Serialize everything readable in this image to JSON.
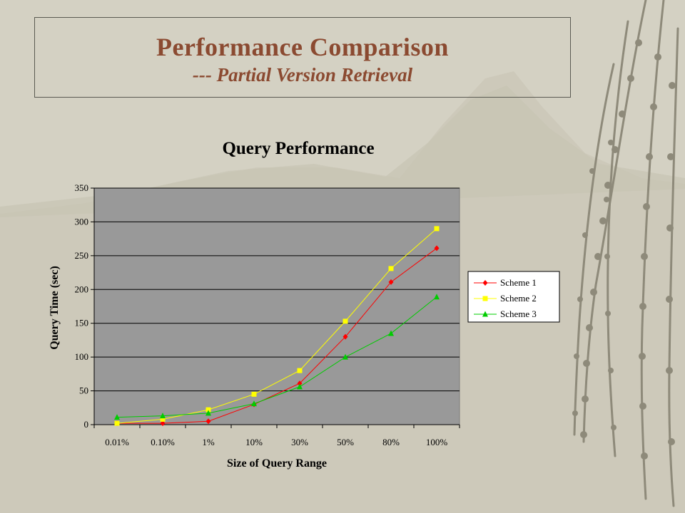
{
  "slide": {
    "title": "Performance Comparison",
    "subtitle": "--- Partial Version Retrieval"
  },
  "colors": {
    "title": "#8b4a31",
    "plot_bg": "#999999",
    "gridline": "#000000"
  },
  "chart_data": {
    "type": "line",
    "title": "Query Performance",
    "xlabel": "Size of Query Range",
    "ylabel": "Query Time (sec)",
    "categories": [
      "0.01%",
      "0.10%",
      "1%",
      "10%",
      "30%",
      "50%",
      "80%",
      "100%"
    ],
    "ylim": [
      0,
      350
    ],
    "yticks": [
      0,
      50,
      100,
      150,
      200,
      250,
      300,
      350
    ],
    "grid": true,
    "legend_position": "right",
    "series": [
      {
        "name": "Scheme 1",
        "color": "#ff0000",
        "marker": "diamond",
        "values": [
          2,
          2,
          5,
          30,
          61,
          130,
          211,
          261
        ]
      },
      {
        "name": "Scheme 2",
        "color": "#ffff00",
        "marker": "square",
        "values": [
          2,
          8,
          22,
          45,
          80,
          153,
          231,
          290
        ]
      },
      {
        "name": "Scheme 3",
        "color": "#00cc00",
        "marker": "triangle",
        "values": [
          11,
          13,
          17,
          31,
          56,
          100,
          135,
          189
        ]
      }
    ]
  }
}
